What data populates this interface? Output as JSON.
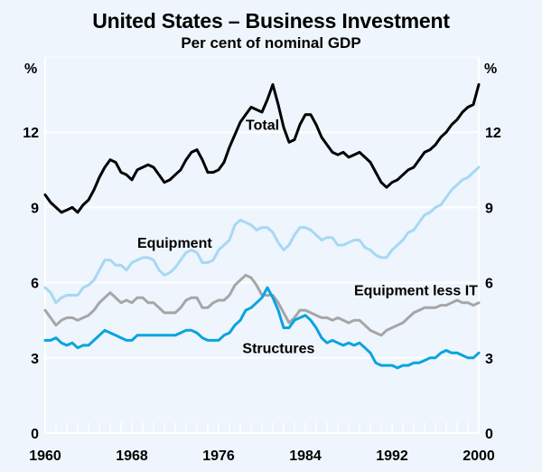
{
  "chart_data": {
    "type": "line",
    "title": "United States – Business Investment",
    "subtitle": "Per cent of nominal GDP",
    "ylabel_left": "%",
    "ylabel_right": "%",
    "xlabel": "",
    "xlim": [
      1960,
      2000
    ],
    "ylim": [
      0,
      15
    ],
    "x_ticks": [
      1960,
      1968,
      1976,
      1984,
      1992,
      2000
    ],
    "x_tick_labels": [
      "1960",
      "1968",
      "1976",
      "1984",
      "1992",
      "2000"
    ],
    "y_ticks": [
      0,
      3,
      6,
      9,
      12
    ],
    "y_tick_labels": [
      "0",
      "3",
      "6",
      "9",
      "12"
    ],
    "grid": true,
    "legend": "inline labels",
    "series": [
      {
        "name": "Total",
        "color": "#000000",
        "label_pos": [
          1978.5,
          12.1
        ],
        "x": [
          1960,
          1960.5,
          1961,
          1961.5,
          1962,
          1962.5,
          1963,
          1963.5,
          1964,
          1964.5,
          1965,
          1965.5,
          1966,
          1966.5,
          1967,
          1967.5,
          1968,
          1968.5,
          1969,
          1969.5,
          1970,
          1970.5,
          1971,
          1971.5,
          1972,
          1972.5,
          1973,
          1973.5,
          1974,
          1974.5,
          1975,
          1975.5,
          1976,
          1976.5,
          1977,
          1977.5,
          1978,
          1978.5,
          1979,
          1979.5,
          1980,
          1980.5,
          1981,
          1981.5,
          1982,
          1982.5,
          1983,
          1983.5,
          1984,
          1984.5,
          1985,
          1985.5,
          1986,
          1986.5,
          1987,
          1987.5,
          1988,
          1988.5,
          1989,
          1989.5,
          1990,
          1990.5,
          1991,
          1991.5,
          1992,
          1992.5,
          1993,
          1993.5,
          1994,
          1994.5,
          1995,
          1995.5,
          1996,
          1996.5,
          1997,
          1997.5,
          1998,
          1998.5,
          1999,
          1999.5,
          2000
        ],
        "y": [
          9.5,
          9.2,
          9.0,
          8.8,
          8.9,
          9.0,
          8.8,
          9.1,
          9.3,
          9.7,
          10.2,
          10.6,
          10.9,
          10.8,
          10.4,
          10.3,
          10.1,
          10.5,
          10.6,
          10.7,
          10.6,
          10.3,
          10.0,
          10.1,
          10.3,
          10.5,
          10.9,
          11.2,
          11.3,
          10.9,
          10.4,
          10.4,
          10.5,
          10.8,
          11.4,
          11.9,
          12.4,
          12.7,
          13.0,
          12.9,
          12.8,
          13.3,
          13.9,
          13.1,
          12.2,
          11.6,
          11.7,
          12.3,
          12.7,
          12.7,
          12.3,
          11.8,
          11.5,
          11.2,
          11.1,
          11.2,
          11.0,
          11.1,
          11.2,
          11.0,
          10.8,
          10.4,
          10.0,
          9.8,
          10.0,
          10.1,
          10.3,
          10.5,
          10.6,
          10.9,
          11.2,
          11.3,
          11.5,
          11.8,
          12.0,
          12.3,
          12.5,
          12.8,
          13.0,
          13.1,
          13.9
        ]
      },
      {
        "name": "Equipment",
        "color": "#a7d8f4",
        "label_pos": [
          1968.5,
          7.4
        ],
        "x": [
          1960,
          1960.5,
          1961,
          1961.5,
          1962,
          1962.5,
          1963,
          1963.5,
          1964,
          1964.5,
          1965,
          1965.5,
          1966,
          1966.5,
          1967,
          1967.5,
          1968,
          1968.5,
          1969,
          1969.5,
          1970,
          1970.5,
          1971,
          1971.5,
          1972,
          1972.5,
          1973,
          1973.5,
          1974,
          1974.5,
          1975,
          1975.5,
          1976,
          1976.5,
          1977,
          1977.5,
          1978,
          1978.5,
          1979,
          1979.5,
          1980,
          1980.5,
          1981,
          1981.5,
          1982,
          1982.5,
          1983,
          1983.5,
          1984,
          1984.5,
          1985,
          1985.5,
          1986,
          1986.5,
          1987,
          1987.5,
          1988,
          1988.5,
          1989,
          1989.5,
          1990,
          1990.5,
          1991,
          1991.5,
          1992,
          1992.5,
          1993,
          1993.5,
          1994,
          1994.5,
          1995,
          1995.5,
          1996,
          1996.5,
          1997,
          1997.5,
          1998,
          1998.5,
          1999,
          1999.5,
          2000
        ],
        "y": [
          5.8,
          5.6,
          5.2,
          5.4,
          5.5,
          5.5,
          5.5,
          5.8,
          5.9,
          6.1,
          6.5,
          6.9,
          6.9,
          6.7,
          6.7,
          6.5,
          6.8,
          6.9,
          7.0,
          7.0,
          6.9,
          6.5,
          6.3,
          6.4,
          6.6,
          6.9,
          7.2,
          7.3,
          7.2,
          6.8,
          6.8,
          6.9,
          7.3,
          7.5,
          7.7,
          8.3,
          8.5,
          8.4,
          8.3,
          8.1,
          8.2,
          8.2,
          8.0,
          7.6,
          7.3,
          7.5,
          7.9,
          8.2,
          8.2,
          8.1,
          7.9,
          7.7,
          7.8,
          7.8,
          7.5,
          7.5,
          7.6,
          7.7,
          7.7,
          7.4,
          7.3,
          7.1,
          7.0,
          7.0,
          7.3,
          7.5,
          7.7,
          8.0,
          8.1,
          8.4,
          8.7,
          8.8,
          9.0,
          9.1,
          9.4,
          9.7,
          9.9,
          10.1,
          10.2,
          10.4,
          10.6
        ]
      },
      {
        "name": "Equipment less IT",
        "color": "#a6a6a6",
        "label_pos": [
          1988.5,
          5.5
        ],
        "x": [
          1960,
          1960.5,
          1961,
          1961.5,
          1962,
          1962.5,
          1963,
          1963.5,
          1964,
          1964.5,
          1965,
          1965.5,
          1966,
          1966.5,
          1967,
          1967.5,
          1968,
          1968.5,
          1969,
          1969.5,
          1970,
          1970.5,
          1971,
          1971.5,
          1972,
          1972.5,
          1973,
          1973.5,
          1974,
          1974.5,
          1975,
          1975.5,
          1976,
          1976.5,
          1977,
          1977.5,
          1978,
          1978.5,
          1979,
          1979.5,
          1980,
          1980.5,
          1981,
          1981.5,
          1982,
          1982.5,
          1983,
          1983.5,
          1984,
          1984.5,
          1985,
          1985.5,
          1986,
          1986.5,
          1987,
          1987.5,
          1988,
          1988.5,
          1989,
          1989.5,
          1990,
          1990.5,
          1991,
          1991.5,
          1992,
          1992.5,
          1993,
          1993.5,
          1994,
          1994.5,
          1995,
          1995.5,
          1996,
          1996.5,
          1997,
          1997.5,
          1998,
          1998.5,
          1999,
          1999.5,
          2000
        ],
        "y": [
          4.9,
          4.6,
          4.3,
          4.5,
          4.6,
          4.6,
          4.5,
          4.6,
          4.7,
          4.9,
          5.2,
          5.4,
          5.6,
          5.4,
          5.2,
          5.3,
          5.2,
          5.4,
          5.4,
          5.2,
          5.2,
          5.0,
          4.8,
          4.8,
          4.8,
          5.0,
          5.3,
          5.4,
          5.4,
          5.0,
          5.0,
          5.2,
          5.3,
          5.3,
          5.5,
          5.9,
          6.1,
          6.3,
          6.2,
          5.9,
          5.5,
          5.5,
          5.5,
          5.2,
          4.8,
          4.4,
          4.6,
          4.9,
          4.9,
          4.8,
          4.7,
          4.6,
          4.6,
          4.5,
          4.6,
          4.5,
          4.4,
          4.5,
          4.5,
          4.3,
          4.1,
          4.0,
          3.9,
          4.1,
          4.2,
          4.3,
          4.4,
          4.6,
          4.8,
          4.9,
          5.0,
          5.0,
          5.0,
          5.1,
          5.1,
          5.2,
          5.3,
          5.2,
          5.2,
          5.1,
          5.2
        ]
      },
      {
        "name": "Structures",
        "color": "#0aa3e0",
        "label_pos": [
          1978.2,
          3.2
        ],
        "x": [
          1960,
          1960.5,
          1961,
          1961.5,
          1962,
          1962.5,
          1963,
          1963.5,
          1964,
          1964.5,
          1965,
          1965.5,
          1966,
          1966.5,
          1967,
          1967.5,
          1968,
          1968.5,
          1969,
          1969.5,
          1970,
          1970.5,
          1971,
          1971.5,
          1972,
          1972.5,
          1973,
          1973.5,
          1974,
          1974.5,
          1975,
          1975.5,
          1976,
          1976.5,
          1977,
          1977.5,
          1978,
          1978.5,
          1979,
          1979.5,
          1980,
          1980.5,
          1981,
          1981.5,
          1982,
          1982.5,
          1983,
          1983.5,
          1984,
          1984.5,
          1985,
          1985.5,
          1986,
          1986.5,
          1987,
          1987.5,
          1988,
          1988.5,
          1989,
          1989.5,
          1990,
          1990.5,
          1991,
          1991.5,
          1992,
          1992.5,
          1993,
          1993.5,
          1994,
          1994.5,
          1995,
          1995.5,
          1996,
          1996.5,
          1997,
          1997.5,
          1998,
          1998.5,
          1999,
          1999.5,
          2000
        ],
        "y": [
          3.7,
          3.7,
          3.8,
          3.6,
          3.5,
          3.6,
          3.4,
          3.5,
          3.5,
          3.7,
          3.9,
          4.1,
          4.0,
          3.9,
          3.8,
          3.7,
          3.7,
          3.9,
          3.9,
          3.9,
          3.9,
          3.9,
          3.9,
          3.9,
          3.9,
          4.0,
          4.1,
          4.1,
          4.0,
          3.8,
          3.7,
          3.7,
          3.7,
          3.9,
          4.0,
          4.3,
          4.5,
          4.9,
          5.0,
          5.2,
          5.4,
          5.8,
          5.4,
          4.9,
          4.2,
          4.2,
          4.5,
          4.6,
          4.7,
          4.5,
          4.2,
          3.8,
          3.6,
          3.7,
          3.6,
          3.5,
          3.6,
          3.5,
          3.6,
          3.4,
          3.2,
          2.8,
          2.7,
          2.7,
          2.7,
          2.6,
          2.7,
          2.7,
          2.8,
          2.8,
          2.9,
          3.0,
          3.0,
          3.2,
          3.3,
          3.2,
          3.2,
          3.1,
          3.0,
          3.0,
          3.2
        ]
      }
    ]
  }
}
